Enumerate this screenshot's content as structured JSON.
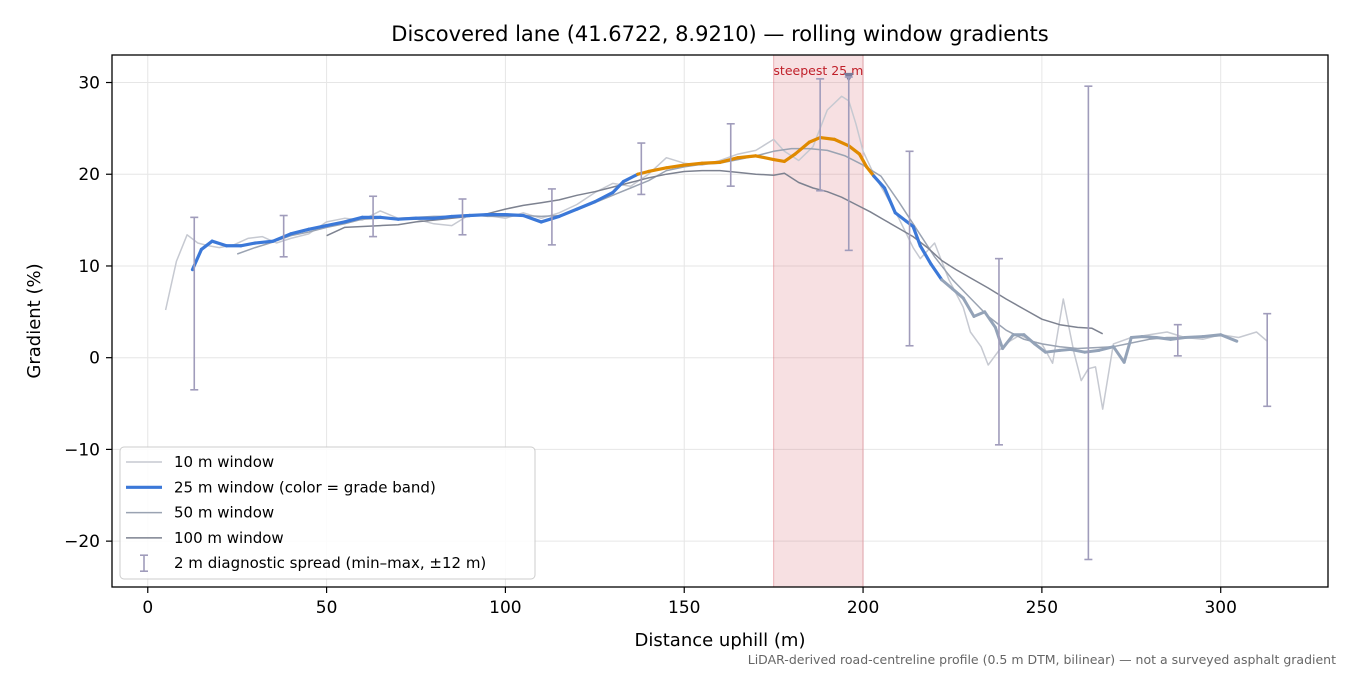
{
  "chart_data": {
    "type": "line",
    "title": "Discovered lane (41.6722, 8.9210) — rolling window gradients",
    "xlabel": "Distance uphill (m)",
    "ylabel": "Gradient (%)",
    "xlim": [
      -10,
      330
    ],
    "ylim": [
      -25,
      33
    ],
    "x_ticks": [
      0,
      50,
      100,
      150,
      200,
      250,
      300
    ],
    "y_ticks": [
      -20,
      -10,
      0,
      10,
      20,
      30
    ],
    "y_tick_labels": [
      "−20",
      "−10",
      "0",
      "10",
      "20",
      "30"
    ],
    "grid": true,
    "legend_position": "lower-left",
    "footnote": "LiDAR-derived road-centreline profile (0.5 m DTM, bilinear) — not a surveyed asphalt gradient",
    "highlight": {
      "x_range": [
        175,
        200
      ],
      "label": "steepest 25 m",
      "marker_x": 196,
      "marker_y": 30.5,
      "color": "#d9646e"
    },
    "colors": {
      "w10": "#c6c9d1",
      "w50": "#9aa3b2",
      "w100": "#7d8290",
      "blue": "#3b78d8",
      "orange": "#e08a00",
      "grey_band": "#94a3b8",
      "errorbar": "#a09cbb"
    },
    "series": [
      {
        "name": "10 m window",
        "key": "w10",
        "x": [
          5,
          8,
          11,
          14,
          17,
          20,
          24,
          28,
          32,
          36,
          40,
          45,
          50,
          55,
          60,
          65,
          70,
          75,
          80,
          85,
          90,
          95,
          100,
          105,
          110,
          115,
          120,
          125,
          130,
          135,
          140,
          145,
          150,
          155,
          160,
          165,
          170,
          175,
          178,
          182,
          186,
          190,
          194,
          196,
          198,
          200,
          203,
          206,
          210,
          214,
          216,
          220,
          224,
          228,
          230,
          233,
          235,
          238,
          241,
          244,
          247,
          250,
          253,
          256,
          259,
          261,
          263,
          265,
          267,
          270,
          275,
          280,
          285,
          290,
          295,
          300,
          305,
          310,
          313
        ],
        "y": [
          5.2,
          10.5,
          13.4,
          12.5,
          12.2,
          12.0,
          12.3,
          13.0,
          13.2,
          12.5,
          13.0,
          13.5,
          14.8,
          15.2,
          15.0,
          16.0,
          15.2,
          15.1,
          14.6,
          14.4,
          15.6,
          15.5,
          15.2,
          15.8,
          15.2,
          15.8,
          16.7,
          18.0,
          19.0,
          18.7,
          20.0,
          21.8,
          21.2,
          21.0,
          21.5,
          22.2,
          22.6,
          23.8,
          22.5,
          21.5,
          23.0,
          27.0,
          28.5,
          28.0,
          25.5,
          22.5,
          20.0,
          18.0,
          15.2,
          12.0,
          10.8,
          12.5,
          8.5,
          5.5,
          2.8,
          1.2,
          -0.8,
          0.8,
          1.8,
          2.5,
          1.8,
          1.5,
          -0.6,
          6.4,
          0.5,
          -2.5,
          -1.2,
          -1.0,
          -5.6,
          1.5,
          2.2,
          2.5,
          2.8,
          2.2,
          2.0,
          2.5,
          2.2,
          2.8,
          1.8
        ]
      },
      {
        "name": "25 m window (color = grade band)",
        "key": "w25",
        "x": [
          12.5,
          15,
          18,
          22,
          26,
          30,
          35,
          40,
          45,
          50,
          55,
          60,
          65,
          70,
          75,
          80,
          85,
          90,
          95,
          100,
          105,
          110,
          115,
          120,
          125,
          130,
          133,
          137,
          140,
          145,
          150,
          155,
          160,
          165,
          170,
          175,
          178,
          181,
          185,
          188,
          192,
          196,
          199,
          201,
          203,
          206,
          209,
          212,
          214,
          216,
          219,
          222,
          225,
          228,
          231,
          234,
          237,
          239,
          242,
          245,
          248,
          251,
          255,
          258,
          262,
          266,
          270,
          273,
          275,
          278,
          282,
          286,
          290,
          295,
          300,
          304.5
        ],
        "y": [
          9.6,
          11.8,
          12.7,
          12.2,
          12.2,
          12.5,
          12.7,
          13.5,
          14.0,
          14.4,
          14.8,
          15.3,
          15.3,
          15.1,
          15.2,
          15.2,
          15.4,
          15.5,
          15.6,
          15.6,
          15.5,
          14.8,
          15.4,
          16.2,
          17.0,
          18.0,
          19.2,
          20.0,
          20.3,
          20.7,
          21.0,
          21.2,
          21.3,
          21.8,
          22.0,
          21.6,
          21.4,
          22.2,
          23.5,
          24.0,
          23.8,
          23.1,
          22.2,
          20.8,
          19.8,
          18.5,
          15.8,
          14.9,
          14.3,
          12.2,
          10.2,
          8.5,
          7.5,
          6.5,
          4.5,
          5.0,
          3.3,
          1.0,
          2.5,
          2.5,
          1.5,
          0.6,
          0.8,
          0.9,
          0.6,
          0.8,
          1.2,
          -0.5,
          2.2,
          2.3,
          2.2,
          2.0,
          2.2,
          2.3,
          2.5,
          1.8
        ]
      },
      {
        "name": "50 m window",
        "key": "w50",
        "x": [
          25,
          30,
          35,
          40,
          45,
          50,
          55,
          60,
          65,
          70,
          75,
          80,
          85,
          90,
          95,
          100,
          105,
          110,
          115,
          120,
          125,
          130,
          135,
          140,
          145,
          150,
          155,
          160,
          165,
          170,
          175,
          180,
          185,
          190,
          195,
          200,
          205,
          210,
          215,
          220,
          225,
          230,
          235,
          240,
          245,
          250,
          255,
          260,
          265,
          270,
          275,
          280,
          285,
          290,
          295,
          300
        ],
        "y": [
          11.3,
          12.0,
          12.6,
          13.3,
          13.7,
          14.2,
          14.6,
          15.1,
          15.2,
          15.2,
          15.3,
          15.4,
          15.4,
          15.6,
          15.4,
          15.4,
          15.5,
          15.4,
          15.5,
          16.1,
          16.9,
          17.7,
          18.5,
          19.3,
          20.4,
          20.8,
          21.1,
          21.2,
          21.6,
          22.0,
          22.5,
          22.8,
          22.8,
          22.6,
          22.0,
          21.0,
          19.8,
          17.0,
          14.0,
          11.0,
          8.5,
          6.5,
          4.5,
          3.0,
          2.0,
          1.5,
          1.2,
          1.0,
          1.1,
          1.2,
          1.6,
          2.0,
          2.2,
          2.2,
          2.3,
          2.4
        ]
      },
      {
        "name": "100 m window",
        "key": "w100",
        "x": [
          50,
          55,
          60,
          65,
          70,
          75,
          80,
          85,
          90,
          95,
          100,
          105,
          110,
          115,
          120,
          125,
          130,
          135,
          140,
          145,
          150,
          155,
          160,
          165,
          170,
          175,
          178,
          182,
          186,
          190,
          194,
          198,
          202,
          206,
          210,
          214,
          218,
          222,
          226,
          230,
          235,
          240,
          245,
          250,
          255,
          260,
          264,
          267
        ],
        "y": [
          13.3,
          14.2,
          14.3,
          14.4,
          14.5,
          14.8,
          15.0,
          15.2,
          15.4,
          15.7,
          16.2,
          16.6,
          16.9,
          17.2,
          17.7,
          18.1,
          18.6,
          19.1,
          19.6,
          20.0,
          20.3,
          20.4,
          20.4,
          20.2,
          20.0,
          19.9,
          20.1,
          19.1,
          18.5,
          18.1,
          17.5,
          16.7,
          15.9,
          15.0,
          14.1,
          13.2,
          12.0,
          10.6,
          9.6,
          8.7,
          7.6,
          6.4,
          5.3,
          4.2,
          3.6,
          3.3,
          3.2,
          2.6
        ]
      }
    ],
    "errorbars": {
      "name": "2 m diagnostic spread (min–max, ±12 m)",
      "x": [
        13,
        38,
        63,
        88,
        113,
        138,
        163,
        188,
        196,
        213,
        238,
        263,
        288,
        313
      ],
      "low": [
        -3.5,
        11.0,
        13.2,
        13.4,
        12.3,
        17.8,
        18.7,
        18.2,
        11.7,
        1.3,
        -9.5,
        -22.0,
        0.2,
        -5.3
      ],
      "high": [
        15.3,
        15.5,
        17.6,
        17.3,
        18.4,
        23.4,
        25.5,
        30.4,
        30.6,
        22.5,
        10.8,
        29.6,
        3.6,
        4.8
      ]
    }
  }
}
